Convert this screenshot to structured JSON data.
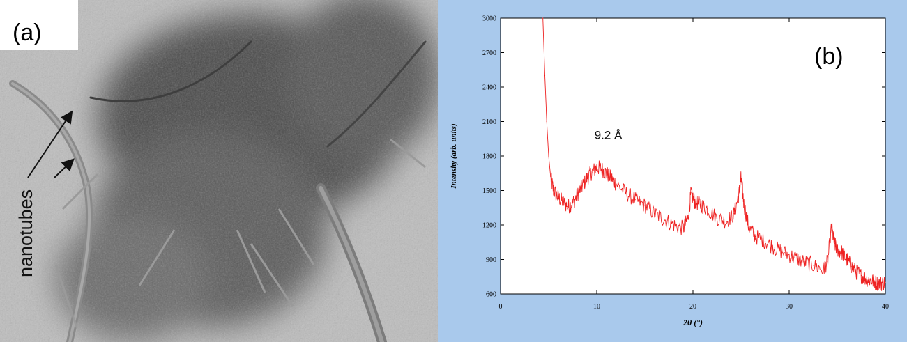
{
  "panel_a": {
    "label": "(a)",
    "annotation": "nanotubes"
  },
  "panel_b": {
    "label": "(b)"
  },
  "colors": {
    "panel_b_background": "#a9c9ec",
    "trace": "#ee2222"
  },
  "chart_data": {
    "type": "line",
    "title": "",
    "xlabel": "2θ (°)",
    "ylabel": "Intensity (arb. units)",
    "xlim": [
      0,
      40
    ],
    "ylim": [
      600,
      3000
    ],
    "x_ticks": [
      0,
      10,
      20,
      30,
      40
    ],
    "y_ticks": [
      600,
      900,
      1200,
      1500,
      1800,
      2100,
      2400,
      2700,
      3000
    ],
    "grid": false,
    "legend": "none",
    "annotations": [
      {
        "text": "9.2 Å",
        "x": 11.2,
        "y": 1950
      }
    ],
    "series": [
      {
        "color": "#ee2222",
        "x": [
          4.4,
          4.6,
          4.8,
          5.0,
          5.2,
          5.5,
          6.0,
          6.5,
          7.0,
          7.5,
          8.0,
          8.5,
          9.0,
          9.5,
          10.0,
          10.5,
          11.0,
          11.5,
          12.0,
          13.0,
          14.0,
          15.0,
          16.0,
          17.0,
          18.0,
          19.0,
          19.5,
          19.8,
          20.2,
          20.8,
          21.5,
          22.5,
          23.5,
          24.3,
          24.8,
          25.0,
          25.3,
          25.8,
          26.5,
          27.5,
          28.5,
          29.5,
          30.5,
          31.5,
          32.5,
          33.5,
          34.0,
          34.4,
          34.7,
          35.0,
          35.5,
          36.0,
          36.5,
          37.0,
          37.5,
          38.0,
          38.5,
          39.0,
          39.5,
          40.0
        ],
        "y": [
          3000,
          2500,
          2100,
          1800,
          1620,
          1500,
          1440,
          1400,
          1360,
          1390,
          1460,
          1540,
          1610,
          1660,
          1700,
          1690,
          1650,
          1610,
          1560,
          1480,
          1420,
          1370,
          1300,
          1250,
          1200,
          1170,
          1260,
          1480,
          1400,
          1380,
          1340,
          1260,
          1230,
          1300,
          1480,
          1610,
          1380,
          1180,
          1100,
          1060,
          1000,
          960,
          920,
          880,
          850,
          810,
          880,
          1180,
          1040,
          990,
          960,
          900,
          840,
          790,
          760,
          730,
          720,
          700,
          690,
          700
        ]
      }
    ]
  }
}
